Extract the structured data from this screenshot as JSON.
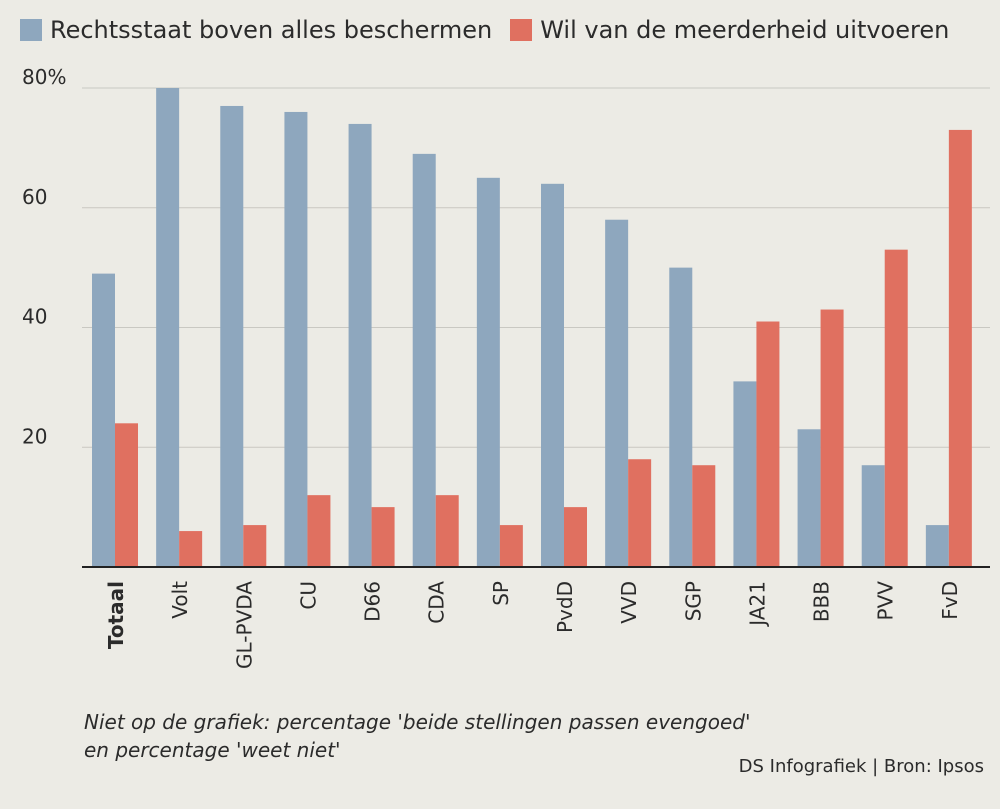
{
  "legend": {
    "items": [
      {
        "label": "Rechtsstaat boven alles beschermen",
        "color": "#8ea7be"
      },
      {
        "label": "Wil van de meerderheid uitvoeren",
        "color": "#e07060"
      }
    ]
  },
  "chart_data": {
    "type": "bar",
    "categories": [
      "Totaal",
      "Volt",
      "GL-PVDA",
      "CU",
      "D66",
      "CDA",
      "SP",
      "PvdD",
      "VVD",
      "SGP",
      "JA21",
      "BBB",
      "PVV",
      "FvD"
    ],
    "series": [
      {
        "name": "Rechtsstaat boven alles beschermen",
        "color": "#8ea7be",
        "values": [
          49,
          80,
          77,
          76,
          74,
          69,
          65,
          64,
          58,
          50,
          31,
          23,
          17,
          7
        ]
      },
      {
        "name": "Wil van de meerderheid uitvoeren",
        "color": "#e07060",
        "values": [
          24,
          6,
          7,
          12,
          10,
          12,
          7,
          10,
          18,
          17,
          41,
          43,
          53,
          73
        ]
      }
    ],
    "yticks": [
      {
        "value": 80,
        "label": "80%"
      },
      {
        "value": 60,
        "label": "60"
      },
      {
        "value": 40,
        "label": "40"
      },
      {
        "value": 20,
        "label": "20"
      }
    ],
    "ylim": [
      0,
      80
    ],
    "grid": true
  },
  "footnote": {
    "line1": "Niet op de grafiek: percentage 'beide stellingen passen evengoed'",
    "line2": "en percentage 'weet niet'"
  },
  "source": "DS Infografiek | Bron: Ipsos"
}
